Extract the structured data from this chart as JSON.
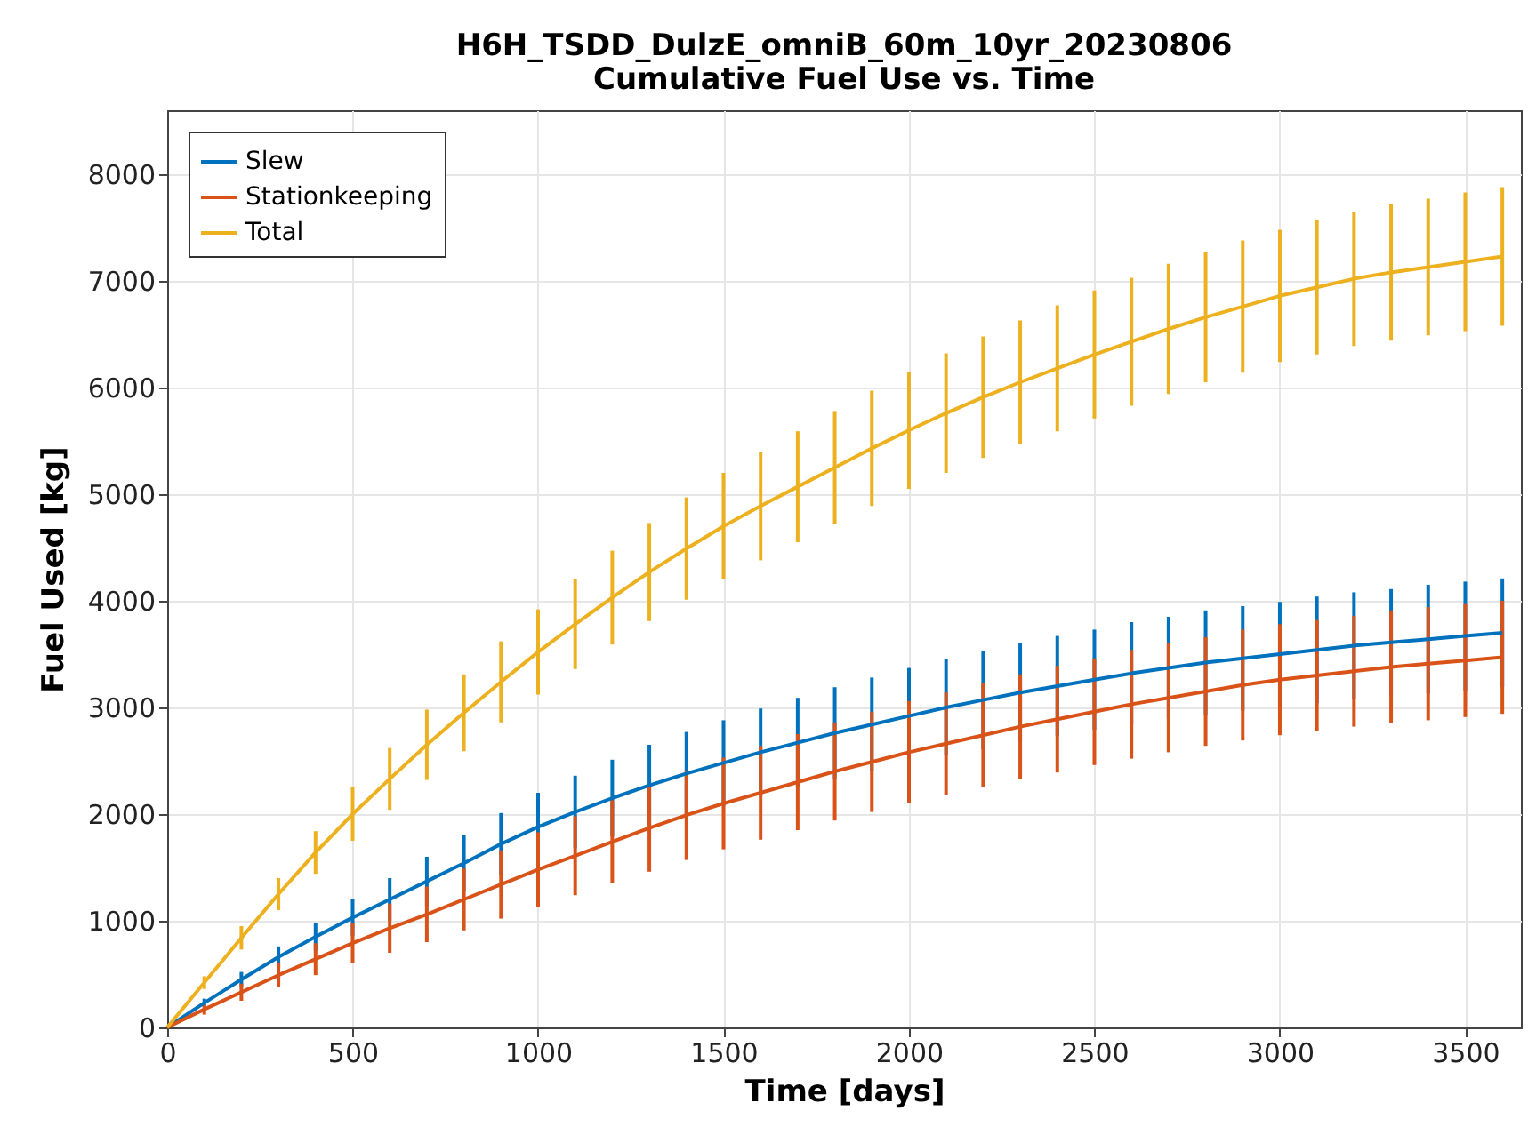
{
  "chart_data": {
    "type": "line",
    "title": "H6H_TSDD_DulzE_omniB_60m_10yr_20230806",
    "subtitle": "Cumulative Fuel Use vs. Time",
    "xlabel": "Time [days]",
    "ylabel": "Fuel Used [kg]",
    "x": [
      0,
      100,
      200,
      300,
      400,
      500,
      600,
      700,
      800,
      900,
      1000,
      1100,
      1200,
      1300,
      1400,
      1500,
      1600,
      1700,
      1800,
      1900,
      2000,
      2100,
      2200,
      2300,
      2400,
      2500,
      2600,
      2700,
      2800,
      2900,
      3000,
      3100,
      3200,
      3300,
      3400,
      3500,
      3600
    ],
    "series": [
      {
        "name": "Slew",
        "color": "#0072bd",
        "values": [
          0,
          230,
          450,
          660,
          850,
          1030,
          1200,
          1370,
          1540,
          1720,
          1880,
          2020,
          2150,
          2270,
          2380,
          2480,
          2580,
          2670,
          2760,
          2840,
          2920,
          3000,
          3070,
          3140,
          3200,
          3260,
          3320,
          3370,
          3420,
          3460,
          3500,
          3540,
          3580,
          3610,
          3640,
          3670,
          3700
        ],
        "errors": [
          0,
          40,
          70,
          100,
          130,
          170,
          200,
          230,
          260,
          290,
          320,
          340,
          360,
          380,
          390,
          400,
          410,
          420,
          430,
          440,
          450,
          450,
          460,
          460,
          470,
          470,
          480,
          480,
          490,
          490,
          490,
          500,
          500,
          500,
          510,
          510,
          510
        ]
      },
      {
        "name": "Stationkeeping",
        "color": "#d95319",
        "values": [
          0,
          170,
          330,
          490,
          640,
          790,
          930,
          1060,
          1200,
          1340,
          1480,
          1610,
          1740,
          1870,
          1990,
          2100,
          2200,
          2300,
          2400,
          2490,
          2580,
          2660,
          2740,
          2820,
          2890,
          2960,
          3030,
          3090,
          3150,
          3210,
          3260,
          3300,
          3340,
          3380,
          3410,
          3440,
          3470
        ],
        "errors": [
          0,
          50,
          80,
          110,
          150,
          190,
          230,
          260,
          290,
          320,
          350,
          370,
          390,
          410,
          420,
          430,
          440,
          450,
          460,
          470,
          480,
          480,
          490,
          490,
          500,
          500,
          510,
          510,
          510,
          520,
          520,
          520,
          520,
          530,
          530,
          530,
          530
        ]
      },
      {
        "name": "Total",
        "color": "#edb120",
        "values": [
          0,
          420,
          840,
          1250,
          1640,
          2000,
          2330,
          2650,
          2950,
          3240,
          3520,
          3780,
          4030,
          4270,
          4490,
          4700,
          4890,
          5070,
          5250,
          5430,
          5600,
          5760,
          5910,
          6050,
          6180,
          6310,
          6430,
          6550,
          6660,
          6760,
          6860,
          6940,
          7020,
          7080,
          7130,
          7180,
          7230
        ],
        "errors": [
          0,
          60,
          110,
          150,
          200,
          250,
          290,
          330,
          360,
          380,
          400,
          420,
          440,
          460,
          480,
          500,
          510,
          520,
          530,
          540,
          550,
          560,
          570,
          580,
          590,
          600,
          600,
          610,
          610,
          620,
          620,
          630,
          630,
          640,
          640,
          650,
          650
        ]
      }
    ],
    "xlim": [
      0,
      3650
    ],
    "xticks": [
      0,
      500,
      1000,
      1500,
      2000,
      2500,
      3000,
      3500
    ],
    "ylim": [
      0,
      8600
    ],
    "yticks": [
      0,
      1000,
      2000,
      3000,
      4000,
      5000,
      6000,
      7000,
      8000
    ],
    "grid": true,
    "legend": "top left",
    "marker": "none",
    "line_style": "solid"
  }
}
